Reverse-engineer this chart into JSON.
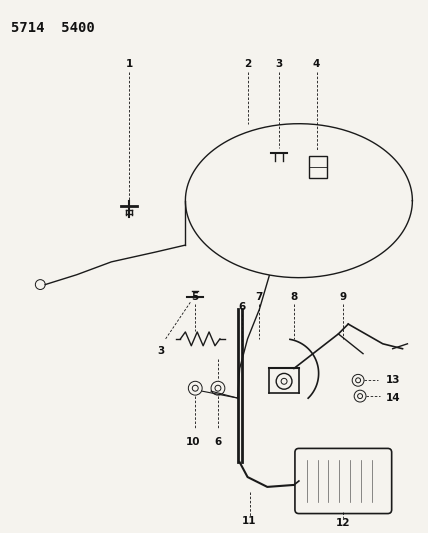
{
  "title": "5714  5400",
  "bg_color": "#f5f3ee",
  "line_color": "#1a1a1a",
  "label_color": "#111111",
  "title_fontsize": 10,
  "label_fontsize": 7.5,
  "fig_width": 4.28,
  "fig_height": 5.33,
  "dpi": 100
}
